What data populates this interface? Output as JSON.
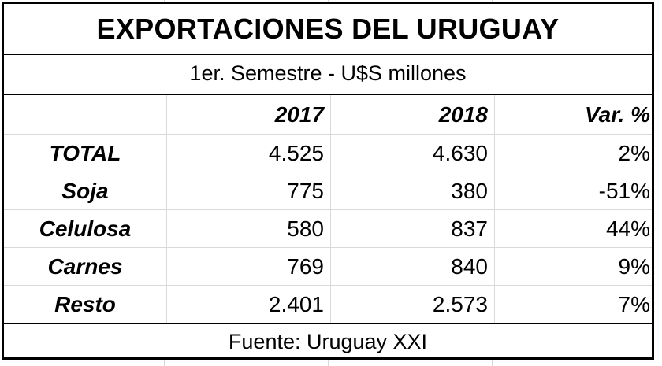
{
  "title": "EXPORTACIONES DEL URUGUAY",
  "subtitle": "1er. Semestre - U$S millones",
  "header": {
    "label": "",
    "col_2017": "2017",
    "col_2018": "2018",
    "col_var": "Var. %"
  },
  "rows": [
    {
      "label": "TOTAL",
      "v2017": "4.525",
      "v2018": "4.630",
      "var": "2%"
    },
    {
      "label": "Soja",
      "v2017": "775",
      "v2018": "380",
      "var": "-51%"
    },
    {
      "label": "Celulosa",
      "v2017": "580",
      "v2018": "837",
      "var": "44%"
    },
    {
      "label": "Carnes",
      "v2017": "769",
      "v2018": "840",
      "var": "9%"
    },
    {
      "label": "Resto",
      "v2017": "2.401",
      "v2018": "2.573",
      "var": "7%"
    }
  ],
  "footer": "Fuente: Uruguay XXI",
  "colors": {
    "border": "#000000",
    "gridline": "#d9d9d9",
    "background": "#ffffff"
  }
}
